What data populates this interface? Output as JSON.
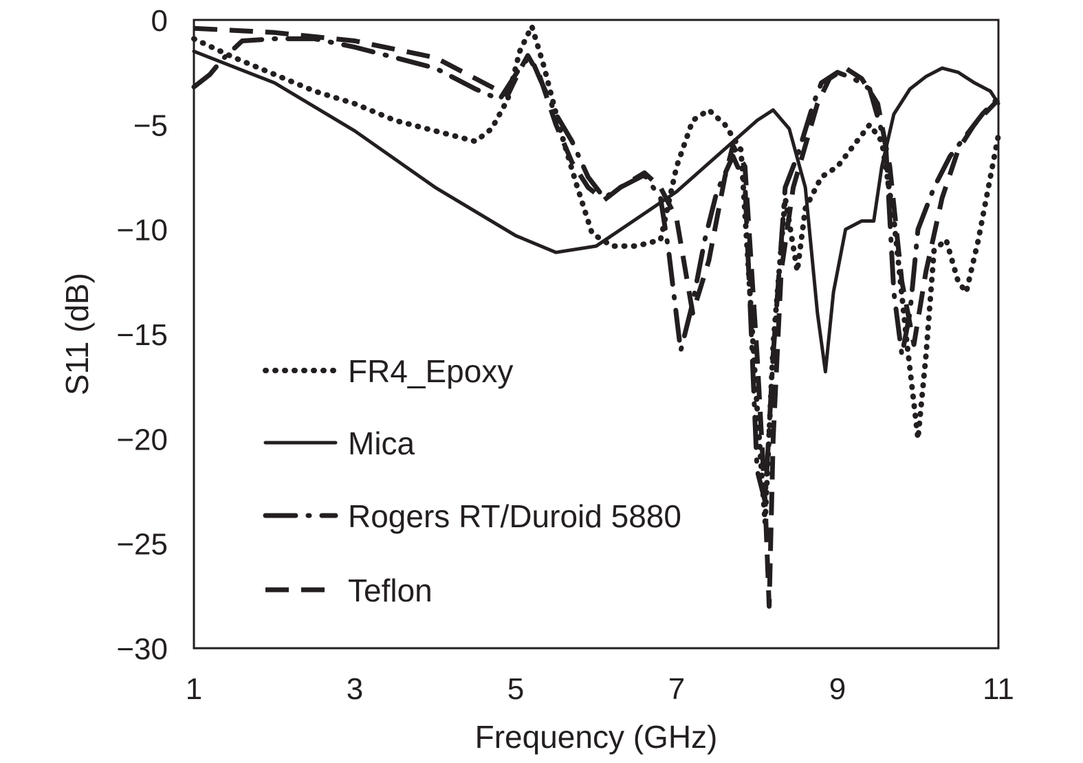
{
  "chart_data": {
    "type": "line",
    "title": "",
    "xlabel": "Frequency (GHz)",
    "ylabel": "S11 (dB)",
    "xlim": [
      1,
      11
    ],
    "ylim": [
      -30,
      0
    ],
    "xticks": [
      1,
      3,
      5,
      7,
      9,
      11
    ],
    "yticks": [
      0,
      -5,
      -10,
      -15,
      -20,
      -25,
      -30
    ],
    "xtick_labels": [
      "1",
      "3",
      "5",
      "7",
      "9",
      "11"
    ],
    "ytick_labels": [
      "0",
      "−5",
      "−10",
      "−15",
      "−20",
      "−25",
      "−30"
    ],
    "grid": false,
    "legend_position": "lower-left",
    "line_color": "#231f20",
    "series": [
      {
        "name": "FR4_Epoxy",
        "style": "dotted",
        "points": [
          [
            1,
            -0.9
          ],
          [
            1.5,
            -1.8
          ],
          [
            2,
            -2.6
          ],
          [
            2.5,
            -3.4
          ],
          [
            3,
            -4.0
          ],
          [
            3.5,
            -4.8
          ],
          [
            4,
            -5.3
          ],
          [
            4.5,
            -5.8
          ],
          [
            4.7,
            -5.2
          ],
          [
            4.9,
            -3.8
          ],
          [
            5.05,
            -1.5
          ],
          [
            5.2,
            -0.3
          ],
          [
            5.35,
            -2.2
          ],
          [
            5.55,
            -5.2
          ],
          [
            5.75,
            -7.8
          ],
          [
            5.95,
            -10.2
          ],
          [
            6.2,
            -10.8
          ],
          [
            6.5,
            -10.8
          ],
          [
            6.8,
            -10.5
          ],
          [
            7.0,
            -7.0
          ],
          [
            7.2,
            -4.8
          ],
          [
            7.4,
            -4.3
          ],
          [
            7.6,
            -5.0
          ],
          [
            7.8,
            -6.2
          ],
          [
            8.0,
            -18.5
          ],
          [
            8.1,
            -24.0
          ],
          [
            8.2,
            -15.5
          ],
          [
            8.35,
            -8.5
          ],
          [
            8.5,
            -12.0
          ],
          [
            8.6,
            -9.0
          ],
          [
            8.8,
            -7.5
          ],
          [
            9.0,
            -7.0
          ],
          [
            9.2,
            -6.0
          ],
          [
            9.4,
            -5.0
          ],
          [
            9.55,
            -5.8
          ],
          [
            9.7,
            -9.5
          ],
          [
            9.85,
            -15.0
          ],
          [
            10.0,
            -20.0
          ],
          [
            10.1,
            -16.0
          ],
          [
            10.2,
            -11.0
          ],
          [
            10.35,
            -10.5
          ],
          [
            10.5,
            -12.5
          ],
          [
            10.6,
            -13.0
          ],
          [
            10.75,
            -10.5
          ],
          [
            10.9,
            -7.5
          ],
          [
            11.0,
            -5.5
          ]
        ]
      },
      {
        "name": "Mica",
        "style": "solid",
        "points": [
          [
            1,
            -1.5
          ],
          [
            2,
            -3.0
          ],
          [
            3,
            -5.3
          ],
          [
            4,
            -8.0
          ],
          [
            5,
            -10.3
          ],
          [
            5.5,
            -11.1
          ],
          [
            6,
            -10.8
          ],
          [
            6.5,
            -9.5
          ],
          [
            7,
            -8.2
          ],
          [
            7.5,
            -6.5
          ],
          [
            8,
            -4.8
          ],
          [
            8.2,
            -4.3
          ],
          [
            8.4,
            -5.2
          ],
          [
            8.6,
            -8.0
          ],
          [
            8.75,
            -14.0
          ],
          [
            8.85,
            -16.8
          ],
          [
            8.95,
            -13.0
          ],
          [
            9.1,
            -10.0
          ],
          [
            9.3,
            -9.6
          ],
          [
            9.45,
            -9.6
          ],
          [
            9.55,
            -7.0
          ],
          [
            9.7,
            -4.5
          ],
          [
            9.9,
            -3.3
          ],
          [
            10.1,
            -2.7
          ],
          [
            10.3,
            -2.3
          ],
          [
            10.5,
            -2.5
          ],
          [
            10.7,
            -3.0
          ],
          [
            10.9,
            -3.4
          ],
          [
            11.0,
            -4.0
          ]
        ]
      },
      {
        "name": "Rogers RT/Duroid 5880",
        "style": "dashdot",
        "points": [
          [
            1,
            -3.2
          ],
          [
            1.2,
            -2.6
          ],
          [
            1.35,
            -1.9
          ],
          [
            1.6,
            -1.0
          ],
          [
            2,
            -0.9
          ],
          [
            2.5,
            -0.9
          ],
          [
            3,
            -1.3
          ],
          [
            3.5,
            -1.8
          ],
          [
            4,
            -2.3
          ],
          [
            4.5,
            -3.3
          ],
          [
            4.8,
            -3.8
          ],
          [
            5.1,
            -2.0
          ],
          [
            5.2,
            -1.9
          ],
          [
            5.3,
            -2.8
          ],
          [
            5.5,
            -4.5
          ],
          [
            5.7,
            -5.8
          ],
          [
            5.9,
            -7.5
          ],
          [
            6.1,
            -8.5
          ],
          [
            6.3,
            -8.0
          ],
          [
            6.6,
            -7.4
          ],
          [
            6.8,
            -8.5
          ],
          [
            6.9,
            -11.0
          ],
          [
            7.05,
            -15.8
          ],
          [
            7.2,
            -13.5
          ],
          [
            7.35,
            -10.5
          ],
          [
            7.5,
            -8.2
          ],
          [
            7.7,
            -6.5
          ],
          [
            7.85,
            -7.8
          ],
          [
            8.0,
            -21.5
          ],
          [
            8.1,
            -23.0
          ],
          [
            8.2,
            -16.0
          ],
          [
            8.35,
            -8.0
          ],
          [
            8.5,
            -6.5
          ],
          [
            8.7,
            -4.0
          ],
          [
            8.8,
            -3.0
          ],
          [
            9.0,
            -2.5
          ],
          [
            9.2,
            -2.8
          ],
          [
            9.4,
            -3.3
          ],
          [
            9.6,
            -6.0
          ],
          [
            9.7,
            -13.0
          ],
          [
            9.8,
            -16.0
          ],
          [
            9.9,
            -14.0
          ],
          [
            10.0,
            -10.0
          ],
          [
            10.2,
            -8.0
          ],
          [
            10.4,
            -6.5
          ],
          [
            10.6,
            -5.5
          ],
          [
            10.8,
            -4.5
          ],
          [
            11.0,
            -3.7
          ]
        ]
      },
      {
        "name": "Teflon",
        "style": "dashed",
        "points": [
          [
            1,
            -0.4
          ],
          [
            1.5,
            -0.5
          ],
          [
            2,
            -0.6
          ],
          [
            2.5,
            -0.8
          ],
          [
            3,
            -1.0
          ],
          [
            3.5,
            -1.4
          ],
          [
            4,
            -1.8
          ],
          [
            4.5,
            -2.8
          ],
          [
            4.9,
            -3.6
          ],
          [
            5.05,
            -2.4
          ],
          [
            5.15,
            -1.7
          ],
          [
            5.3,
            -2.7
          ],
          [
            5.5,
            -5.0
          ],
          [
            5.7,
            -6.8
          ],
          [
            5.9,
            -8.0
          ],
          [
            6.1,
            -8.6
          ],
          [
            6.3,
            -8.0
          ],
          [
            6.6,
            -7.3
          ],
          [
            6.8,
            -8.0
          ],
          [
            7.0,
            -9.5
          ],
          [
            7.2,
            -14.0
          ],
          [
            7.4,
            -11.5
          ],
          [
            7.6,
            -7.5
          ],
          [
            7.7,
            -6.0
          ],
          [
            7.85,
            -7.0
          ],
          [
            8.0,
            -16.0
          ],
          [
            8.1,
            -23.0
          ],
          [
            8.15,
            -28.0
          ],
          [
            8.2,
            -20.0
          ],
          [
            8.3,
            -12.0
          ],
          [
            8.45,
            -8.0
          ],
          [
            8.6,
            -6.0
          ],
          [
            8.75,
            -4.0
          ],
          [
            8.9,
            -2.8
          ],
          [
            9.1,
            -2.3
          ],
          [
            9.3,
            -2.8
          ],
          [
            9.5,
            -4.0
          ],
          [
            9.65,
            -7.0
          ],
          [
            9.8,
            -12.5
          ],
          [
            9.95,
            -15.5
          ],
          [
            10.1,
            -12.0
          ],
          [
            10.3,
            -8.5
          ],
          [
            10.5,
            -6.2
          ],
          [
            10.7,
            -5.0
          ],
          [
            10.9,
            -4.2
          ],
          [
            11.0,
            -3.8
          ]
        ]
      }
    ]
  }
}
